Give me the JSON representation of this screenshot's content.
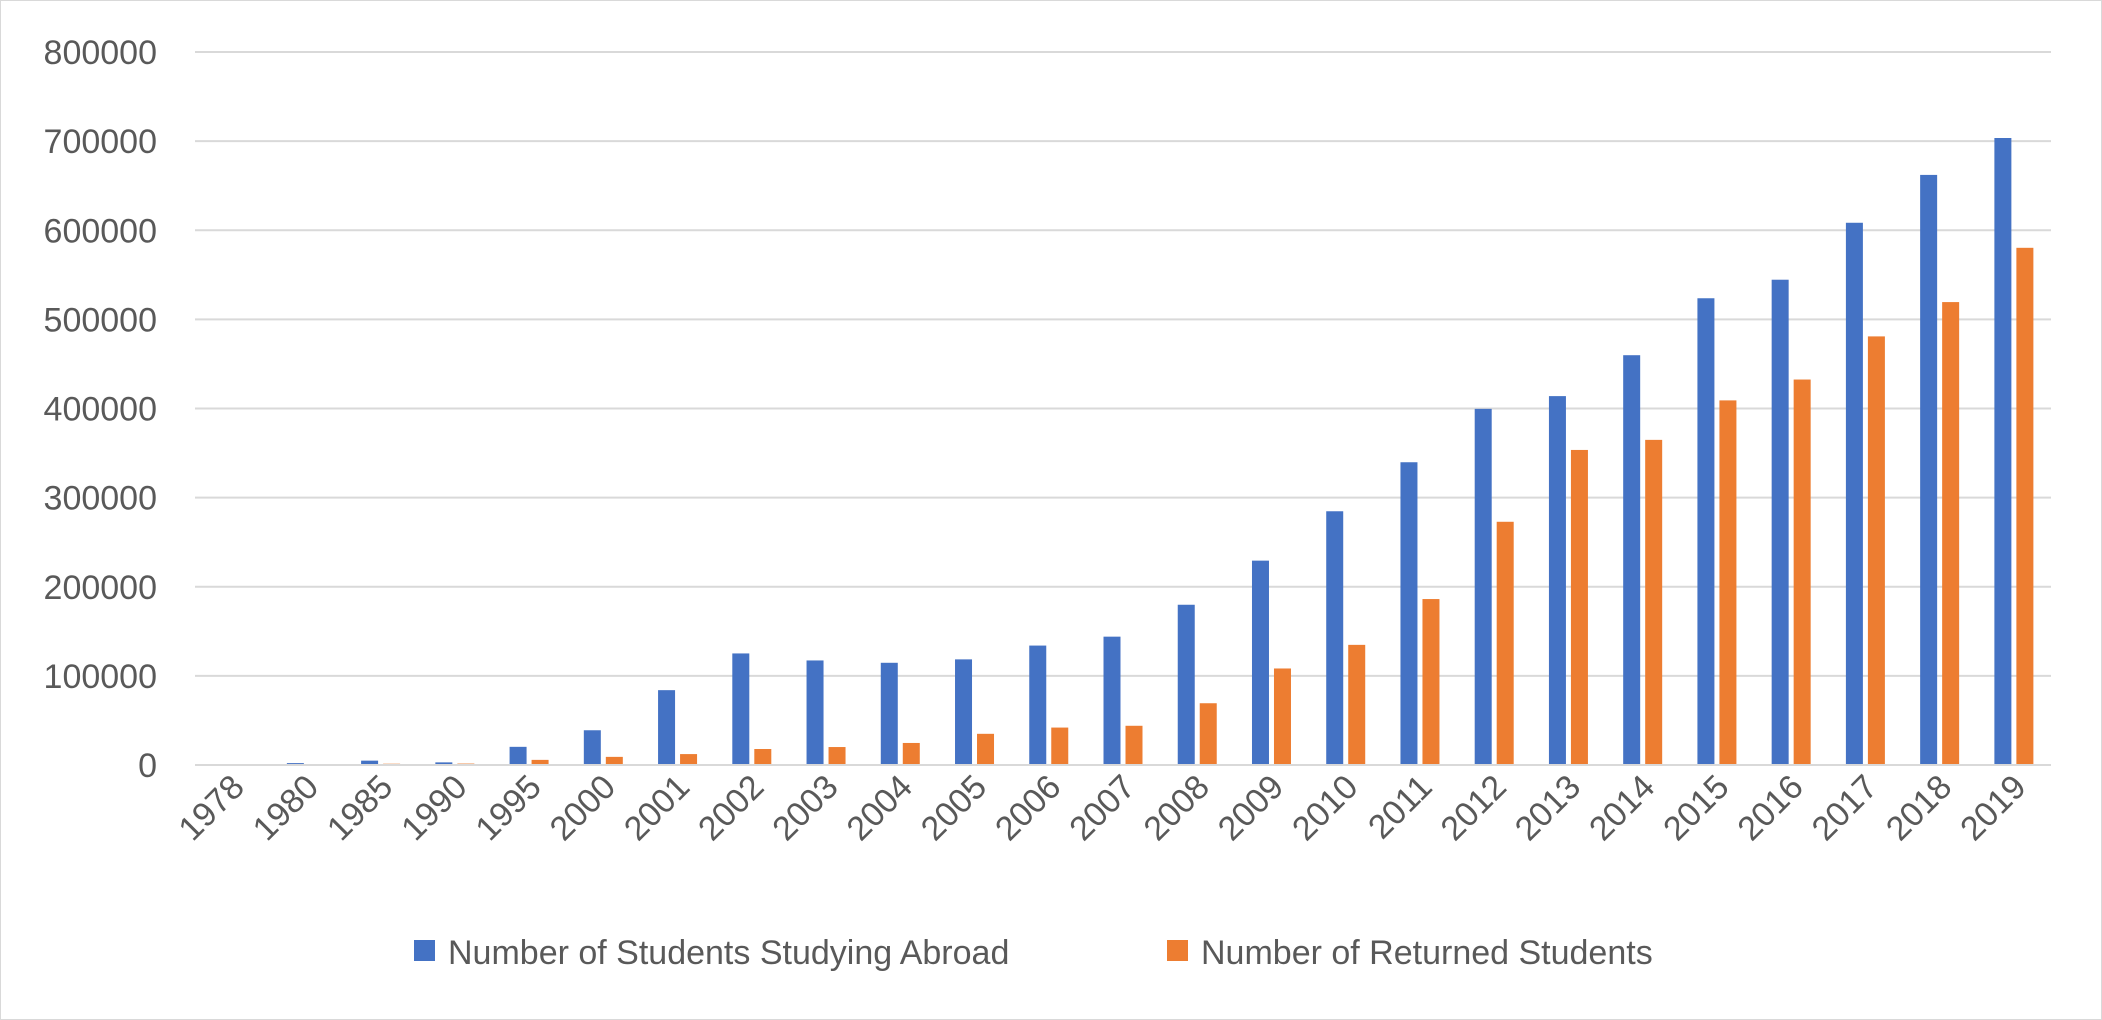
{
  "chart_data": {
    "type": "bar",
    "title": "",
    "xlabel": "",
    "ylabel": "",
    "ylim": [
      0,
      800000
    ],
    "yticks": [
      "0",
      "100000",
      "200000",
      "300000",
      "400000",
      "500000",
      "600000",
      "700000",
      "800000"
    ],
    "grid": true,
    "legend_position": "bottom",
    "categories": [
      "1978",
      "1980",
      "1985",
      "1990",
      "1995",
      "2000",
      "2001",
      "2002",
      "2003",
      "2004",
      "2005",
      "2006",
      "2007",
      "2008",
      "2009",
      "2010",
      "2011",
      "2012",
      "2013",
      "2014",
      "2015",
      "2016",
      "2017",
      "2018",
      "2019"
    ],
    "series": [
      {
        "name": "Number of Students Studying Abroad",
        "color": "#4472C4",
        "values": [
          860,
          2124,
          4888,
          2950,
          20381,
          38989,
          83973,
          125179,
          117307,
          114682,
          118515,
          134000,
          144000,
          179800,
          229300,
          284700,
          339700,
          399600,
          413900,
          459800,
          523700,
          544500,
          608400,
          662100,
          703500
        ]
      },
      {
        "name": "Number of Returned Students",
        "color": "#ED7D31",
        "values": [
          248,
          162,
          1424,
          1593,
          5750,
          9121,
          12243,
          17945,
          20152,
          24726,
          34987,
          42000,
          44000,
          69300,
          108300,
          134800,
          186200,
          272900,
          353500,
          364800,
          409100,
          432500,
          480900,
          519400,
          580300
        ]
      }
    ]
  }
}
